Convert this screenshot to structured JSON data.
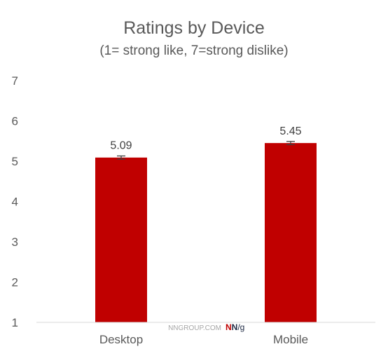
{
  "chart_data": {
    "type": "bar",
    "title": "Ratings by Device",
    "subtitle": "(1= strong like, 7=strong dislike)",
    "categories": [
      "Desktop",
      "Mobile"
    ],
    "values": [
      5.09,
      5.45
    ],
    "data_labels": [
      "5.09",
      "5.45"
    ],
    "error_bars": [
      0.04,
      0.04
    ],
    "ylim": [
      1,
      7
    ],
    "yticks": [
      1,
      2,
      3,
      4,
      5,
      6,
      7
    ],
    "grid": false,
    "legend": "none",
    "colors": {
      "bar": "#c00000",
      "error_bar": "#404040",
      "axis": "#d9d9d9",
      "text": "#595959"
    }
  },
  "watermark": {
    "site": "NNGROUP.COM",
    "logo_n1": "N",
    "logo_n2": "N",
    "logo_g": "/g",
    "colors": {
      "site": "#a6a6a6",
      "n1": "#c00000",
      "n2": "#1f2a44"
    }
  }
}
